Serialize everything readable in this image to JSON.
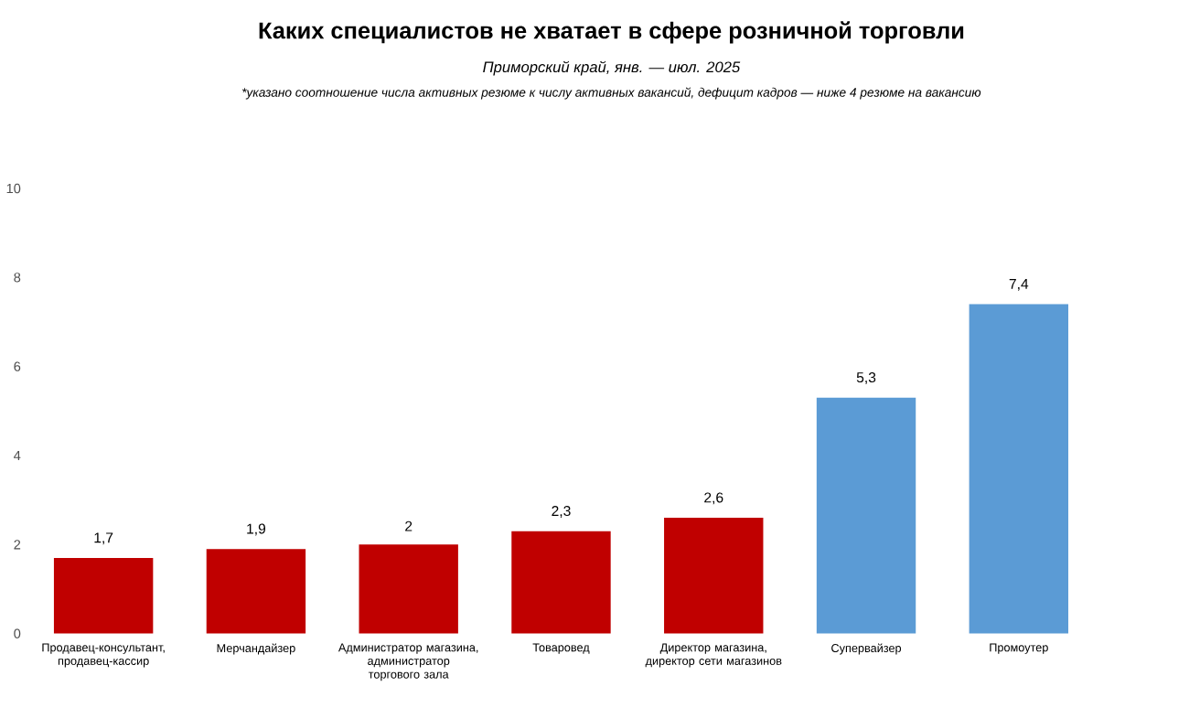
{
  "chart_data": {
    "type": "bar",
    "title": "Каких специалистов не хватает в сфере розничной торговли",
    "subtitle": "Приморский край, янв. — июл. 2025",
    "annotations": [
      "*указано соотношение числа активных резюме к числу активных вакансий, дефицит кадров — ниже 4 резюме на вакансию"
    ],
    "categories": [
      "Продавец-консультант, продавец-кассир",
      "Мерчандайзер",
      "Администратор магазина, администратор торгового зала",
      "Товаровед",
      "Директор магазина, директор сети магазинов",
      "Супервайзер",
      "Промоутер"
    ],
    "values": [
      1.7,
      1.9,
      2,
      2.3,
      2.6,
      5.3,
      7.4
    ],
    "value_labels": [
      "1,7",
      "1,9",
      "2",
      "2,3",
      "2,6",
      "5,3",
      "7,4"
    ],
    "colors": [
      "#c00000",
      "#c00000",
      "#c00000",
      "#c00000",
      "#c00000",
      "#5b9bd5",
      "#5b9bd5"
    ],
    "ylim": [
      0,
      10
    ],
    "yticks": [
      0,
      2,
      4,
      6,
      8,
      10
    ],
    "grid": false
  }
}
